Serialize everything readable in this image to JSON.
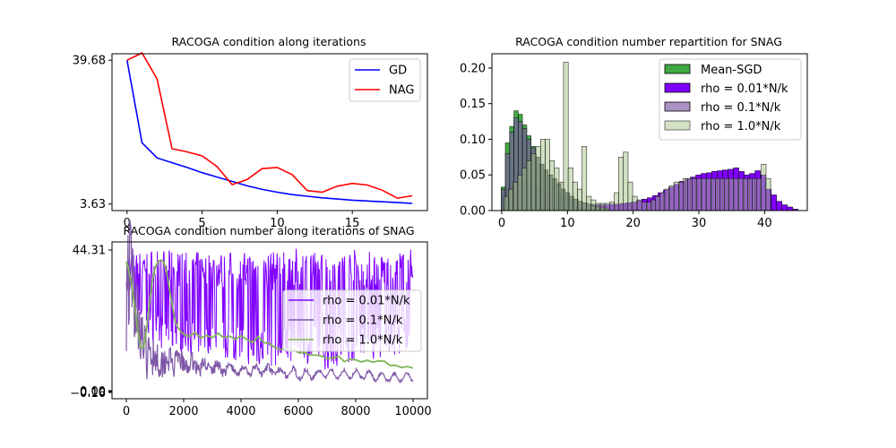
{
  "chart_data": [
    {
      "type": "line",
      "title": "RACOGA condition along iterations",
      "xlabel": "",
      "ylabel": "",
      "xlim": [
        -1,
        20
      ],
      "ylim": [
        2.0,
        41.3
      ],
      "xticks": [
        0,
        5,
        10,
        15
      ],
      "yticks": [
        3.63,
        39.68
      ],
      "x": [
        0,
        1,
        2,
        3,
        4,
        5,
        6,
        7,
        8,
        9,
        10,
        11,
        12,
        13,
        14,
        15,
        16,
        17,
        18,
        19
      ],
      "series": [
        {
          "name": "GD",
          "color": "#0000ff",
          "values": [
            39.68,
            19.0,
            15.2,
            14.0,
            12.8,
            11.5,
            10.4,
            9.3,
            8.2,
            7.3,
            6.6,
            6.0,
            5.6,
            5.2,
            4.9,
            4.6,
            4.4,
            4.2,
            4.0,
            3.8
          ]
        },
        {
          "name": "NAG",
          "color": "#ff0000",
          "values": [
            39.68,
            41.5,
            35.0,
            17.5,
            16.7,
            15.7,
            13.0,
            8.5,
            9.8,
            12.5,
            12.8,
            11.0,
            7.0,
            6.6,
            8.1,
            8.8,
            8.4,
            7.1,
            5.1,
            5.7
          ]
        }
      ],
      "legend": "top-right"
    },
    {
      "type": "bar",
      "title": "RACOGA condition number repartition for SNAG",
      "xlabel": "",
      "ylabel": "",
      "xlim": [
        -1.5,
        46.5
      ],
      "ylim": [
        0,
        0.22
      ],
      "xticks": [
        0,
        10,
        20,
        30,
        40
      ],
      "yticks": [
        "0.00",
        "0.05",
        "0.10",
        "0.15",
        "0.20"
      ],
      "legend": "top-right",
      "series": [
        {
          "name": "Mean-SGD",
          "color": "#2ca02c",
          "opacity": 0.9,
          "bar_width": 0.65,
          "x": [
            -0.1,
            0.55,
            1.2,
            1.85,
            2.5,
            3.15,
            3.8,
            4.45,
            5.1,
            5.75,
            6.4,
            7.05,
            7.7,
            8.35,
            9.0,
            9.65,
            10.3,
            10.95,
            11.6,
            12.25,
            12.9,
            13.55,
            14.2,
            14.85,
            15.5
          ],
          "values": [
            0.033,
            0.095,
            0.118,
            0.14,
            0.135,
            0.12,
            0.105,
            0.09,
            0.075,
            0.065,
            0.057,
            0.05,
            0.045,
            0.038,
            0.03,
            0.025,
            0.02,
            0.016,
            0.013,
            0.011,
            0.009,
            0.007,
            0.005,
            0.004,
            0.003
          ]
        },
        {
          "name": "rho = 0.01*N/k",
          "color": "#8000ff",
          "opacity": 1.0,
          "bar_width": 0.82,
          "x": [
            0,
            0.82,
            1.64,
            2.46,
            3.28,
            4.1,
            4.92,
            5.74,
            6.56,
            7.38,
            8.2,
            9.02,
            9.84,
            10.66,
            11.48,
            12.3,
            13.12,
            13.94,
            14.76,
            15.58,
            16.4,
            17.22,
            18.04,
            18.86,
            19.68,
            20.5,
            21.32,
            22.14,
            22.96,
            23.78,
            24.6,
            25.42,
            26.24,
            27.06,
            27.88,
            28.7,
            29.52,
            30.34,
            31.16,
            31.98,
            32.8,
            33.62,
            34.44,
            35.26,
            36.08,
            36.9,
            37.72,
            38.54,
            39.36,
            40.18,
            41.0,
            41.82,
            42.64,
            43.46,
            44.28
          ],
          "values": [
            0.025,
            0.03,
            0.035,
            0.04,
            0.04,
            0.038,
            0.035,
            0.03,
            0.027,
            0.025,
            0.022,
            0.02,
            0.017,
            0.014,
            0.012,
            0.01,
            0.009,
            0.008,
            0.008,
            0.008,
            0.009,
            0.009,
            0.01,
            0.011,
            0.012,
            0.014,
            0.016,
            0.018,
            0.021,
            0.025,
            0.029,
            0.033,
            0.037,
            0.041,
            0.044,
            0.047,
            0.05,
            0.052,
            0.053,
            0.055,
            0.056,
            0.057,
            0.058,
            0.06,
            0.055,
            0.05,
            0.052,
            0.056,
            0.05,
            0.03,
            0.022,
            0.013,
            0.008,
            0.005,
            0.002
          ]
        },
        {
          "name": "rho = 0.1*N/k",
          "color": "#7e57a6",
          "opacity": 0.65,
          "bar_width": 0.65,
          "x": [
            -0.1,
            0.55,
            1.2,
            1.85,
            2.5,
            3.15,
            3.8,
            4.45,
            5.1,
            5.75,
            6.4,
            7.05,
            7.7,
            8.35,
            9.0,
            9.65,
            10.3,
            10.95,
            11.6,
            12.25,
            12.9,
            13.55,
            14.2,
            14.85,
            15.5
          ],
          "values": [
            0.03,
            0.08,
            0.11,
            0.13,
            0.125,
            0.115,
            0.1,
            0.088,
            0.075,
            0.065,
            0.057,
            0.05,
            0.043,
            0.036,
            0.03,
            0.025,
            0.02,
            0.016,
            0.013,
            0.011,
            0.009,
            0.007,
            0.005,
            0.004,
            0.003
          ]
        },
        {
          "name": "rho = 1.0*N/k",
          "color": "#a6c48a",
          "opacity": 0.5,
          "bar_width": 0.72,
          "x": [
            0.3,
            1.0,
            1.7,
            2.4,
            3.1,
            3.8,
            4.5,
            5.2,
            5.9,
            6.6,
            7.3,
            8.0,
            8.7,
            9.4,
            10.1,
            10.8,
            11.5,
            12.2,
            12.9,
            13.6,
            14.3,
            15.0,
            15.7,
            16.4,
            17.1,
            17.8,
            18.5,
            19.2,
            19.9,
            20.6,
            21.3,
            22.0,
            22.7,
            23.4,
            24.1,
            24.8,
            25.5,
            26.2,
            26.9,
            27.6,
            28.3,
            29.0,
            29.7,
            30.4,
            31.1,
            31.8,
            32.5,
            33.2,
            33.9,
            34.6,
            35.3,
            36.0,
            36.7,
            37.4,
            38.1,
            38.8,
            39.5,
            40.2
          ],
          "values": [
            0.02,
            0.03,
            0.04,
            0.05,
            0.06,
            0.07,
            0.08,
            0.09,
            0.1,
            0.1,
            0.07,
            0.06,
            0.04,
            0.208,
            0.06,
            0.04,
            0.03,
            0.09,
            0.02,
            0.015,
            0.01,
            0.01,
            0.01,
            0.012,
            0.025,
            0.075,
            0.082,
            0.04,
            0.02,
            0.015,
            0.012,
            0.012,
            0.015,
            0.02,
            0.025,
            0.03,
            0.035,
            0.04,
            0.04,
            0.045,
            0.045,
            0.045,
            0.045,
            0.045,
            0.045,
            0.045,
            0.045,
            0.045,
            0.045,
            0.045,
            0.045,
            0.045,
            0.045,
            0.045,
            0.045,
            0.045,
            0.065,
            0.045
          ]
        }
      ]
    },
    {
      "type": "line",
      "title": "RACOGA condition number along iterations of SNAG",
      "xlabel": "",
      "ylabel": "",
      "xlim": [
        -500,
        10500
      ],
      "ylim": [
        -1.5,
        46
      ],
      "xticks": [
        0,
        2000,
        4000,
        6000,
        8000,
        10000
      ],
      "yticks_upper": [
        "44.31"
      ],
      "yticks_lower": [
        "0.00",
        "0.10",
        "−0.16"
      ],
      "legend": "center-right",
      "series": [
        {
          "name": "rho = 0.01*N/k",
          "color": "#8000ff",
          "noise": "high",
          "band": [
            [
              0,
              42,
              30
            ],
            [
              1000,
              44,
              14
            ],
            [
              2000,
              43,
              12
            ],
            [
              3000,
              43,
              12
            ],
            [
              4000,
              43,
              9
            ],
            [
              5000,
              43,
              8
            ],
            [
              6000,
              44,
              10
            ],
            [
              7000,
              43,
              7
            ],
            [
              8000,
              44,
              10
            ],
            [
              9000,
              43,
              10
            ],
            [
              10000,
              44,
              14
            ]
          ]
        },
        {
          "name": "rho = 0.1*N/k",
          "color": "#7e57a6",
          "noise": "medium",
          "band": [
            [
              0,
              39,
              26
            ],
            [
              300,
              30,
              12
            ],
            [
              600,
              13,
              8
            ],
            [
              1000,
              11,
              6
            ],
            [
              2000,
              9,
              3
            ],
            [
              3000,
              8,
              2
            ],
            [
              4000,
              7,
              1
            ],
            [
              5000,
              7,
              1
            ],
            [
              6000,
              6,
              1
            ],
            [
              7000,
              6,
              0.5
            ],
            [
              8000,
              6,
              0.5
            ],
            [
              9000,
              5,
              0.5
            ],
            [
              10000,
              5,
              0.5
            ]
          ]
        },
        {
          "name": "rho = 1.0*N/k",
          "color": "#7fb357",
          "noise": "low",
          "x": [
            0,
            100,
            200,
            300,
            400,
            500,
            600,
            700,
            800,
            900,
            1000,
            1100,
            1200,
            1300,
            1400,
            1500,
            1600,
            1700,
            1800,
            1900,
            2000,
            2200,
            2400,
            2600,
            2800,
            3000,
            3200,
            3400,
            3600,
            3800,
            4000,
            4200,
            4400,
            4600,
            4800,
            5000,
            5200,
            5400,
            5600,
            5800,
            6000,
            6200,
            6400,
            6600,
            6800,
            7000,
            7200,
            7400,
            7600,
            7800,
            8000,
            8200,
            8400,
            8600,
            8800,
            9000,
            9200,
            9400,
            9600,
            9800,
            10000
          ],
          "values": [
            40,
            37,
            32,
            26,
            19,
            14,
            14,
            19,
            27,
            34,
            38,
            40,
            40.5,
            40,
            37,
            32,
            27,
            22,
            20,
            19,
            18,
            18,
            19,
            17,
            18,
            17,
            18,
            17,
            18,
            17,
            17,
            16,
            16,
            17,
            16,
            15,
            14,
            13,
            14,
            13,
            13,
            12,
            12,
            12,
            11,
            11,
            11,
            11,
            10,
            10,
            10,
            10,
            10,
            10,
            10,
            9.5,
            9,
            8.5,
            8,
            8,
            8
          ]
        }
      ]
    }
  ]
}
